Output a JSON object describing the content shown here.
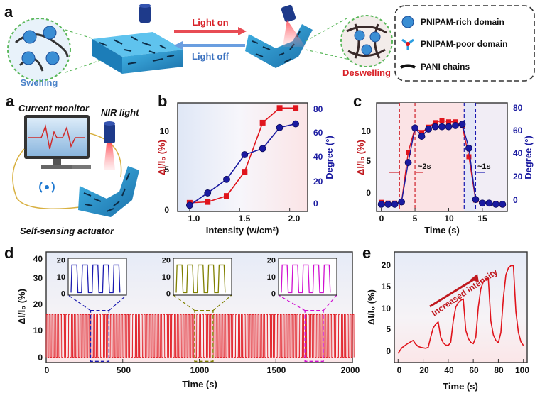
{
  "top": {
    "label": "a",
    "swelling": "Swelling",
    "deswelling": "Deswelling",
    "light_on": "Light on",
    "light_off": "Light off",
    "legend": [
      "PNIPAM-rich domain",
      "PNIPAM-poor domain",
      "PANI chains"
    ]
  },
  "panel_a2": {
    "label": "a",
    "current_monitor": "Current monitor",
    "nir_light": "NIR light",
    "actuator": "Self-sensing actuator"
  },
  "chart_data": [
    {
      "id": "b",
      "type": "line",
      "xlabel": "Intensity (w/cm²)",
      "ylabel": "ΔI/I₀ (%)",
      "y2label": "Degree (°)",
      "xlim": [
        0.88,
        2.18
      ],
      "ylim": [
        0,
        12.6
      ],
      "y2lim": [
        -4,
        84
      ],
      "xticks": [
        "1.0",
        "1.5",
        "2.0"
      ],
      "yticks": [
        "0",
        "5",
        "10"
      ],
      "y2ticks": [
        "0",
        "20",
        "40",
        "60",
        "80"
      ],
      "series": [
        {
          "axis": "left",
          "color": "#e0141c",
          "marker": "square",
          "x": [
            1.0,
            1.18,
            1.37,
            1.55,
            1.73,
            1.9,
            2.06
          ],
          "y": [
            1.0,
            1.1,
            1.8,
            4.6,
            10.3,
            12.0,
            12.0
          ]
        },
        {
          "axis": "right",
          "color": "#1a1aa0",
          "marker": "circle",
          "x": [
            1.0,
            1.18,
            1.37,
            1.55,
            1.73,
            1.9,
            2.06
          ],
          "y": [
            1,
            11,
            22,
            42,
            47,
            64,
            67
          ]
        }
      ]
    },
    {
      "id": "c",
      "type": "line",
      "xlabel": "Time (s)",
      "ylabel": "ΔI/I₀ (%)",
      "y2label": "Degree (°)",
      "xlim": [
        -0.7,
        18.7
      ],
      "ylim": [
        -1.8,
        12.5
      ],
      "y2lim": [
        -6,
        85
      ],
      "xticks": [
        "0",
        "5",
        "10",
        "15"
      ],
      "yticks": [
        "0",
        "5",
        "10"
      ],
      "y2ticks": [
        "0",
        "20",
        "40",
        "60",
        "80"
      ],
      "annotations": [
        "~2s",
        "~1s"
      ],
      "series": [
        {
          "axis": "left",
          "color": "#e0141c",
          "marker": "square",
          "x": [
            0,
            1,
            2,
            3,
            4,
            5,
            6,
            7,
            8,
            9,
            10,
            11,
            12,
            13,
            14,
            15,
            16,
            17,
            18
          ],
          "y": [
            -0.6,
            -0.7,
            -0.7,
            -0.6,
            6.0,
            9.2,
            8.6,
            9.3,
            9.9,
            10.2,
            10.0,
            10.0,
            9.5,
            5.4,
            -0.3,
            -0.7,
            -0.8,
            -0.8,
            -0.9
          ]
        },
        {
          "axis": "right",
          "color": "#1a1aa0",
          "marker": "circle",
          "x": [
            0,
            1,
            2,
            3,
            4,
            5,
            6,
            7,
            8,
            9,
            10,
            11,
            12,
            13,
            14,
            15,
            16,
            17,
            18
          ],
          "y": [
            0,
            0,
            0,
            2,
            35,
            64,
            57,
            63,
            65,
            65,
            65,
            66,
            67,
            47,
            4,
            1,
            1,
            0,
            0
          ]
        }
      ]
    },
    {
      "id": "d",
      "type": "line",
      "xlabel": "Time (s)",
      "ylabel": "ΔI/I₀ (%)",
      "xlim": [
        0,
        2000
      ],
      "ylim": [
        -1.5,
        40
      ],
      "xticks": [
        "0",
        "500",
        "1000",
        "1500",
        "2000"
      ],
      "yticks": [
        "0",
        "10",
        "20",
        "30",
        "40"
      ],
      "cycles": 110,
      "amplitude": [
        0.5,
        16.5
      ],
      "insets": [
        {
          "color": "#1a1ab0",
          "yticks": [
            "0",
            "10",
            "20"
          ],
          "range": [
            290,
            410
          ]
        },
        {
          "color": "#808000",
          "yticks": [
            "0",
            "10",
            "20"
          ],
          "range": [
            970,
            1090
          ]
        },
        {
          "color": "#d010d0",
          "yticks": [
            "0",
            "10",
            "20"
          ],
          "range": [
            1690,
            1810
          ]
        }
      ]
    },
    {
      "id": "e",
      "type": "line",
      "xlabel": "Time (s)",
      "ylabel": "ΔI/I₀ (%)",
      "xlim": [
        -3,
        103
      ],
      "ylim": [
        -2,
        22
      ],
      "xticks": [
        "0",
        "20",
        "40",
        "60",
        "80",
        "100"
      ],
      "yticks": [
        "0",
        "5",
        "10",
        "15",
        "20"
      ],
      "annotation": "Increased intensity",
      "series": [
        {
          "color": "#e0141c",
          "x": [
            0,
            3,
            7,
            10,
            12,
            14,
            16,
            18,
            20,
            22,
            24,
            26,
            28,
            30,
            32,
            34,
            36,
            38,
            40,
            42,
            44,
            46,
            48,
            50,
            52,
            54,
            56,
            58,
            60,
            62,
            64,
            66,
            68,
            70,
            72,
            74,
            76,
            78,
            80,
            82,
            84,
            86,
            88,
            90,
            92,
            94,
            96,
            98,
            100
          ],
          "y": [
            0,
            1.2,
            2.0,
            2.5,
            2.8,
            2.0,
            1.5,
            1.3,
            1.2,
            1.1,
            1.3,
            3.5,
            5.5,
            6.3,
            6.8,
            3.5,
            2.3,
            1.8,
            1.7,
            2.4,
            7.0,
            10.0,
            11.0,
            11.5,
            11.8,
            5.0,
            3.2,
            2.4,
            2.1,
            3.5,
            10.0,
            14.0,
            15.5,
            16.0,
            16.2,
            7.0,
            4.0,
            2.8,
            2.3,
            4.5,
            12.0,
            17.0,
            18.5,
            19.0,
            19.0,
            9.0,
            4.5,
            2.5,
            1.7
          ]
        }
      ]
    }
  ]
}
